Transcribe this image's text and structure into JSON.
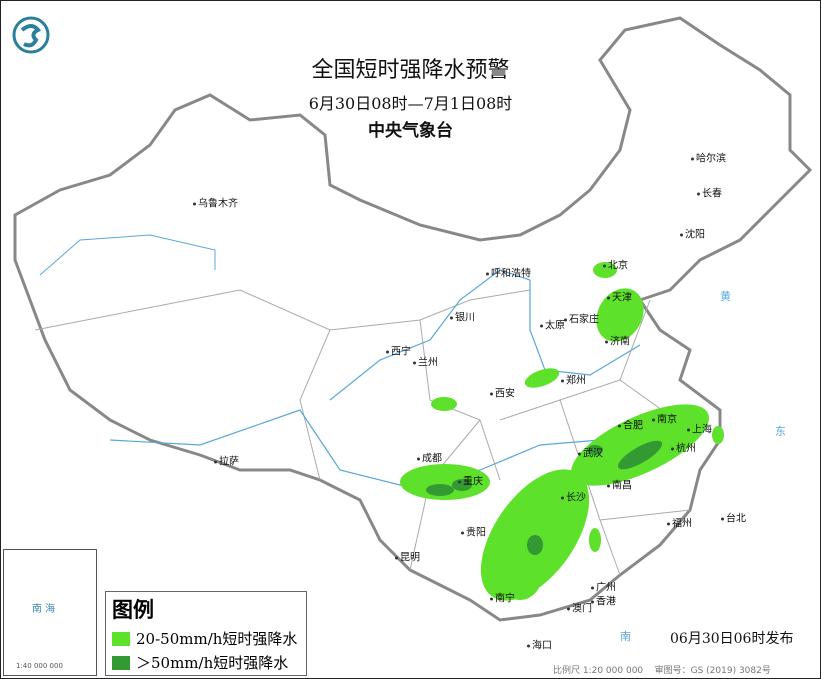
{
  "header": {
    "title": "全国短时强降水预警",
    "period": "6月30日08时—7月1日08时",
    "issuer": "中央气象台",
    "logo": "cma-logo-icon"
  },
  "legend": {
    "title": "图例",
    "items": [
      {
        "label": "20-50mm/h短时强降水",
        "color": "#5ee12a"
      },
      {
        "label": "＞50mm/h短时强降水",
        "color": "#339933"
      }
    ]
  },
  "cities": [
    "哈尔滨",
    "长春",
    "沈阳",
    "乌鲁木齐",
    "呼和浩特",
    "北京",
    "天津",
    "石家庄",
    "太原",
    "银川",
    "济南",
    "西宁",
    "兰州",
    "郑州",
    "西安",
    "合肥",
    "南京",
    "上海",
    "武汉",
    "杭州",
    "成都",
    "重庆",
    "拉萨",
    "长沙",
    "南昌",
    "贵阳",
    "福州",
    "台北",
    "昆明",
    "广州",
    "南宁",
    "香港",
    "澳门",
    "海口"
  ],
  "sea_labels": [
    "黄",
    "东",
    "南"
  ],
  "inset": {
    "sea_label": "南 海",
    "scale": "1:40 000 000"
  },
  "footer": {
    "issued": "06月30日06时发布",
    "scale": "比例尺 1:20 000 000",
    "map_no": "审图号：GS (2019) 3082号"
  },
  "colors": {
    "moderate": "#5ee12a",
    "heavy": "#339933",
    "river": "#58a8d8",
    "border": "#999999"
  }
}
